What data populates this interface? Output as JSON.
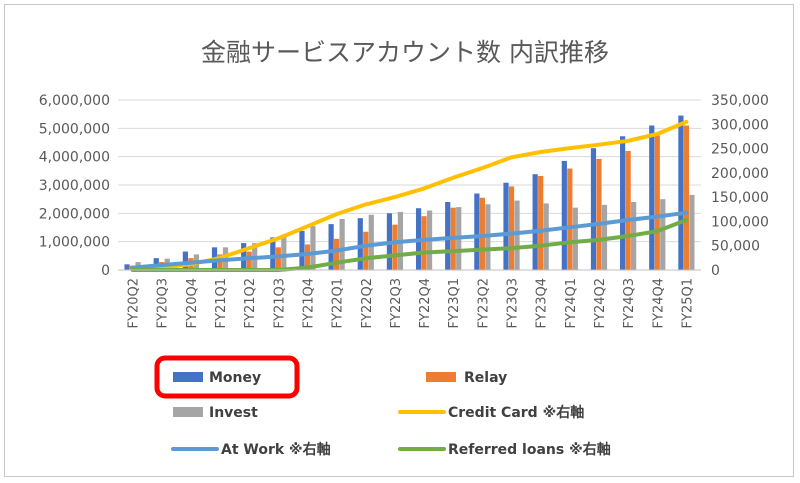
{
  "chart_data": {
    "type": "bar",
    "title": "金融サービスアカウント数 内訳推移",
    "categories": [
      "FY20Q2",
      "FY20Q3",
      "FY20Q4",
      "FY21Q1",
      "FY21Q2",
      "FY21Q3",
      "FY21Q4",
      "FY22Q1",
      "FY22Q2",
      "FY22Q3",
      "FY22Q4",
      "FY23Q1",
      "FY23Q2",
      "FY23Q3",
      "FY23Q4",
      "FY24Q1",
      "FY24Q2",
      "FY24Q3",
      "FY24Q4",
      "FY25Q1"
    ],
    "y_left": {
      "min": 0,
      "max": 6000000,
      "ticks": [
        "0",
        "1,000,000",
        "2,000,000",
        "3,000,000",
        "4,000,000",
        "5,000,000",
        "6,000,000"
      ]
    },
    "y_right": {
      "min": 0,
      "max": 350000,
      "ticks": [
        "0",
        "50,000",
        "100,000",
        "150,000",
        "200,000",
        "250,000",
        "300,000",
        "350,000"
      ]
    },
    "series": [
      {
        "name": "Money",
        "kind": "bar",
        "axis": "left",
        "color": "#4472C4",
        "values": [
          200000,
          420000,
          650000,
          800000,
          950000,
          1150000,
          1380000,
          1620000,
          1830000,
          2000000,
          2180000,
          2400000,
          2700000,
          3080000,
          3380000,
          3850000,
          4300000,
          4720000,
          5100000,
          5450000
        ]
      },
      {
        "name": "Relay",
        "kind": "bar",
        "axis": "left",
        "color": "#ED7D31",
        "values": [
          150000,
          280000,
          420000,
          550000,
          650000,
          800000,
          900000,
          1100000,
          1350000,
          1600000,
          1900000,
          2200000,
          2550000,
          2950000,
          3320000,
          3580000,
          3920000,
          4200000,
          4750000,
          5100000
        ]
      },
      {
        "name": "Invest",
        "kind": "bar",
        "axis": "left",
        "color": "#A5A5A5",
        "values": [
          280000,
          400000,
          550000,
          800000,
          950000,
          1250000,
          1550000,
          1800000,
          1950000,
          2050000,
          2100000,
          2220000,
          2320000,
          2450000,
          2350000,
          2200000,
          2300000,
          2400000,
          2500000,
          2650000
        ]
      },
      {
        "name": "Credit Card ※右軸",
        "kind": "line",
        "axis": "right",
        "color": "#FFC000",
        "values": [
          2000,
          5000,
          12000,
          25000,
          45000,
          65000,
          90000,
          115000,
          135000,
          150000,
          168000,
          190000,
          210000,
          232000,
          243000,
          251000,
          258000,
          266000,
          280000,
          305000
        ]
      },
      {
        "name": "At Work ※右軸",
        "kind": "line",
        "axis": "right",
        "color": "#5B9BD5",
        "values": [
          5000,
          10000,
          15000,
          20000,
          24000,
          28000,
          33000,
          40000,
          50000,
          57000,
          62000,
          66000,
          70000,
          75000,
          81000,
          88000,
          95000,
          103000,
          110000,
          118000
        ]
      },
      {
        "name": "Referred loans ※右軸",
        "kind": "line",
        "axis": "right",
        "color": "#70AD47",
        "values": [
          0,
          0,
          0,
          0,
          0,
          0,
          5000,
          15000,
          24000,
          30000,
          36000,
          39000,
          42000,
          45000,
          50000,
          57000,
          62000,
          70000,
          80000,
          103000
        ]
      }
    ],
    "legend_placement": "bottom",
    "highlighted_legend": "Money",
    "highlight_color": "#FF0000"
  }
}
